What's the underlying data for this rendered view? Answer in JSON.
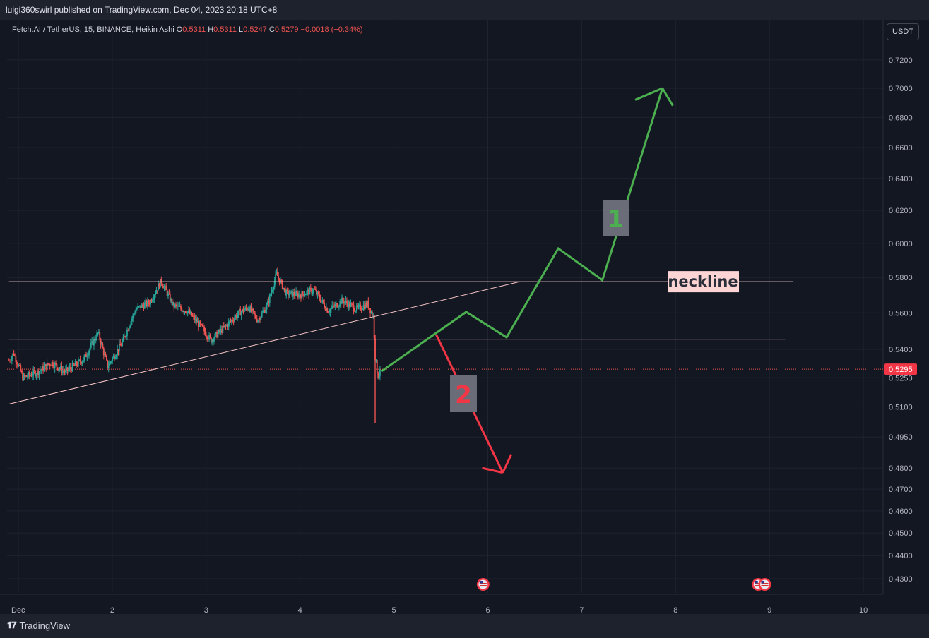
{
  "header": {
    "published": "luigi360swirl published on TradingView.com, Dec 04, 2023 20:18 UTC+8"
  },
  "legend": {
    "symbol": "Fetch.AI / TetherUS, 15, BINANCE, Heikin Ashi",
    "o_label": "O",
    "o_value": "0.5311",
    "h_label": "H",
    "h_value": "0.5311",
    "l_label": "L",
    "l_value": "0.5247",
    "c_label": "C",
    "c_value": "0.5279",
    "change": "−0.0018 (−0.34%)"
  },
  "currency_button": "USDT",
  "footer": {
    "brand": "TradingView"
  },
  "colors": {
    "up": "#26a69a",
    "down": "#ef5350",
    "green_path": "#4caf50",
    "red_path": "#f23645",
    "level_line": "#f8c6c6",
    "background": "#131722"
  },
  "icons": {
    "event_flag": "us-flag-icon",
    "brand_logo": "tradingview-logo-icon"
  },
  "chart_data": {
    "type": "candlestick",
    "candle_style": "Heikin Ashi",
    "x_axis": {
      "ticks": [
        "Dec",
        "2",
        "3",
        "4",
        "5",
        "6",
        "7",
        "8",
        "9",
        "10"
      ],
      "range": [
        0.9,
        10.0
      ]
    },
    "y_axis": {
      "scale": "log",
      "range": [
        0.424,
        0.739
      ],
      "ticks": [
        "0.7200",
        "0.7000",
        "0.6800",
        "0.6600",
        "0.6400",
        "0.6200",
        "0.6000",
        "0.5800",
        "0.5600",
        "0.5400",
        "0.5250",
        "0.5100",
        "0.4950",
        "0.4800",
        "0.4700",
        "0.4600",
        "0.4500",
        "0.4400",
        "0.4300"
      ]
    },
    "grid": true,
    "last_price": {
      "value": 0.5295,
      "label": "0.5295"
    },
    "price_keypoints": [
      {
        "x": 0.9,
        "y": 0.534
      },
      {
        "x": 0.95,
        "y": 0.538
      },
      {
        "x": 1.05,
        "y": 0.525
      },
      {
        "x": 1.2,
        "y": 0.528
      },
      {
        "x": 1.35,
        "y": 0.533
      },
      {
        "x": 1.5,
        "y": 0.528
      },
      {
        "x": 1.7,
        "y": 0.535
      },
      {
        "x": 1.85,
        "y": 0.549
      },
      {
        "x": 1.95,
        "y": 0.531
      },
      {
        "x": 2.1,
        "y": 0.543
      },
      {
        "x": 2.25,
        "y": 0.562
      },
      {
        "x": 2.4,
        "y": 0.566
      },
      {
        "x": 2.52,
        "y": 0.578
      },
      {
        "x": 2.65,
        "y": 0.564
      },
      {
        "x": 2.8,
        "y": 0.561
      },
      {
        "x": 2.95,
        "y": 0.552
      },
      {
        "x": 3.05,
        "y": 0.545
      },
      {
        "x": 3.2,
        "y": 0.552
      },
      {
        "x": 3.35,
        "y": 0.56
      },
      {
        "x": 3.45,
        "y": 0.563
      },
      {
        "x": 3.55,
        "y": 0.556
      },
      {
        "x": 3.65,
        "y": 0.564
      },
      {
        "x": 3.75,
        "y": 0.582
      },
      {
        "x": 3.85,
        "y": 0.571
      },
      {
        "x": 4.0,
        "y": 0.57
      },
      {
        "x": 4.15,
        "y": 0.573
      },
      {
        "x": 4.3,
        "y": 0.561
      },
      {
        "x": 4.45,
        "y": 0.567
      },
      {
        "x": 4.6,
        "y": 0.562
      },
      {
        "x": 4.72,
        "y": 0.565
      },
      {
        "x": 4.78,
        "y": 0.558
      },
      {
        "x": 4.8,
        "y": 0.536
      },
      {
        "x": 4.83,
        "y": 0.526
      },
      {
        "x": 4.86,
        "y": 0.528
      }
    ],
    "spike_low": {
      "x": 4.8,
      "y": 0.502
    },
    "annotations": {
      "neckline_label": "neckline",
      "neckline": {
        "y": 0.5776,
        "x1": 0.9,
        "x2": 9.25
      },
      "support_line": {
        "y": 0.5455,
        "x1": 0.9,
        "x2": 9.17
      },
      "ascending_trendline": [
        {
          "x": 0.9,
          "y": 0.5115
        },
        {
          "x": 6.34,
          "y": 0.5776
        }
      ],
      "scenario_1": {
        "label": "1",
        "path": [
          {
            "x": 4.87,
            "y": 0.5285
          },
          {
            "x": 5.77,
            "y": 0.5605
          },
          {
            "x": 6.2,
            "y": 0.5465
          },
          {
            "x": 6.75,
            "y": 0.597
          },
          {
            "x": 7.22,
            "y": 0.5785
          },
          {
            "x": 7.86,
            "y": 0.7
          }
        ],
        "arrow_heads": [
          {
            "x": 7.57,
            "y": 0.692
          },
          {
            "x": 7.97,
            "y": 0.688
          }
        ]
      },
      "scenario_2": {
        "label": "2",
        "path": [
          {
            "x": 5.45,
            "y": 0.548
          },
          {
            "x": 6.16,
            "y": 0.4778
          }
        ],
        "arrow_heads": [
          {
            "x": 5.94,
            "y": 0.48
          },
          {
            "x": 6.25,
            "y": 0.4865
          }
        ]
      },
      "event_markers": [
        {
          "x": 5.95
        },
        {
          "x": 8.88
        },
        {
          "x": 8.95
        }
      ]
    }
  }
}
